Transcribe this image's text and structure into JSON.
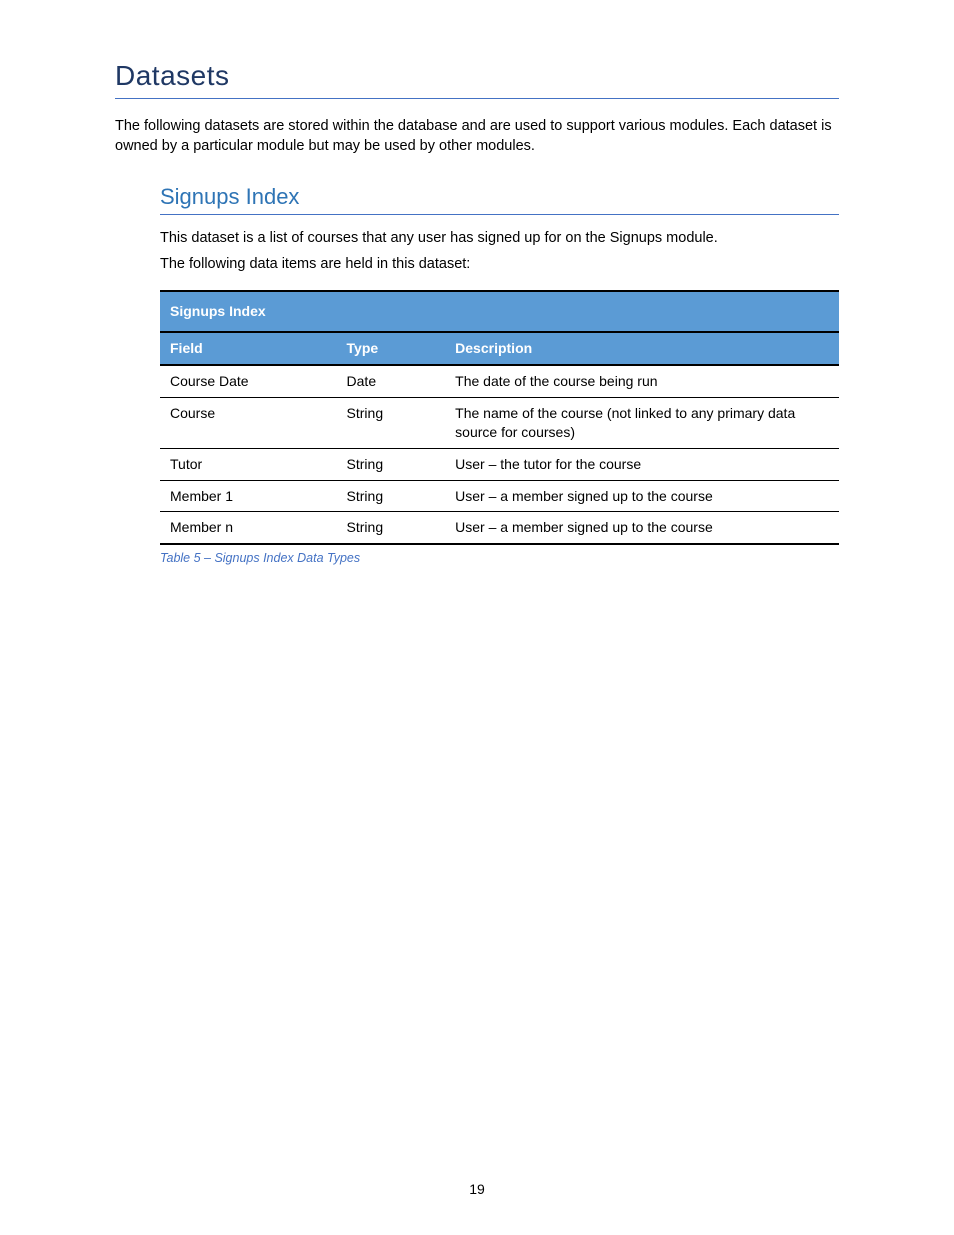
{
  "section": {
    "title": "Datasets",
    "intro": "The following datasets are stored within the database and are used to support various modules. Each dataset is owned by a particular module but may be used by other modules."
  },
  "subsection": {
    "title": "Signups Index",
    "intro_line1": "This dataset is a list of courses that any user has signed up for on the Signups module.",
    "intro_line2": "The following data items are held in this dataset:",
    "caption": "Table 5 – Signups Index Data Types"
  },
  "table": {
    "title": "Signups Index",
    "columns": [
      "Field",
      "Type",
      "Description"
    ],
    "col_widths_pct": [
      26,
      16,
      58
    ],
    "header_bg": "#5b9bd5",
    "header_fg": "#ffffff",
    "border_color": "#000000",
    "rows": [
      {
        "field": "Course Date",
        "type": "Date",
        "desc": "The date of the course being run"
      },
      {
        "field": "Course",
        "type": "String",
        "desc": "The name of the course (not linked to any primary data source for courses)"
      },
      {
        "field": "Tutor",
        "type": "String",
        "desc": "User – the tutor for the course"
      },
      {
        "field": "Member 1",
        "type": "String",
        "desc": "User – a member signed up to the course"
      },
      {
        "field": "Member n",
        "type": "String",
        "desc": "User – a member signed up to the course"
      }
    ]
  },
  "page_number": "19"
}
